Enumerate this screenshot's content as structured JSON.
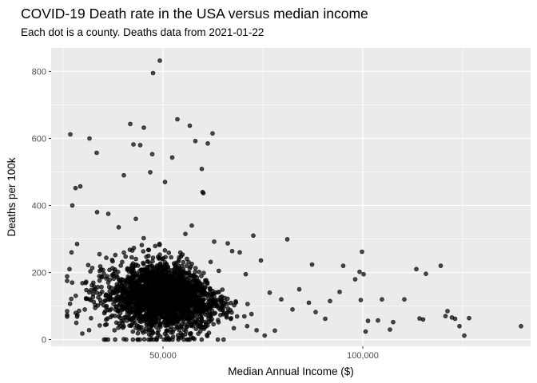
{
  "chart_data": {
    "type": "scatter",
    "title": "COVID-19 Death rate in the USA versus median income",
    "subtitle": "Each dot is a county. Deaths data from 2021-01-22",
    "xlabel": "Median Annual Income ($)",
    "ylabel": "Deaths per 100k",
    "xlim": [
      22000,
      142000
    ],
    "ylim": [
      -20,
      870
    ],
    "x_ticks": [
      50000,
      100000
    ],
    "x_tick_labels": [
      "50,000",
      "100,000"
    ],
    "y_ticks": [
      0,
      200,
      400,
      600,
      800
    ],
    "y_tick_labels": [
      "0",
      "200",
      "400",
      "600",
      "800"
    ],
    "grid": true,
    "background": "#ebebeb",
    "point_color": "#000000",
    "point_fill_opacity": 0.7,
    "cluster": {
      "n_points": 2200,
      "x_median": 50000,
      "x_spread": 9000,
      "y_median": 130,
      "y_spread": 75,
      "x_range": [
        26000,
        78000
      ],
      "y_range": [
        0,
        460
      ]
    },
    "points": [
      {
        "x": 49200,
        "y": 832
      },
      {
        "x": 47500,
        "y": 795
      },
      {
        "x": 45200,
        "y": 632
      },
      {
        "x": 41800,
        "y": 643
      },
      {
        "x": 26800,
        "y": 612
      },
      {
        "x": 31600,
        "y": 600
      },
      {
        "x": 53600,
        "y": 657
      },
      {
        "x": 56700,
        "y": 638
      },
      {
        "x": 62400,
        "y": 615
      },
      {
        "x": 58100,
        "y": 592
      },
      {
        "x": 61200,
        "y": 585
      },
      {
        "x": 42600,
        "y": 582
      },
      {
        "x": 44300,
        "y": 580
      },
      {
        "x": 33400,
        "y": 557
      },
      {
        "x": 52300,
        "y": 543
      },
      {
        "x": 47300,
        "y": 553
      },
      {
        "x": 59700,
        "y": 509
      },
      {
        "x": 59900,
        "y": 440
      },
      {
        "x": 60100,
        "y": 437
      },
      {
        "x": 28100,
        "y": 452
      },
      {
        "x": 29300,
        "y": 457
      },
      {
        "x": 27300,
        "y": 400
      },
      {
        "x": 81100,
        "y": 299
      },
      {
        "x": 72600,
        "y": 310
      },
      {
        "x": 99800,
        "y": 262
      },
      {
        "x": 87300,
        "y": 224
      },
      {
        "x": 95100,
        "y": 220
      },
      {
        "x": 119500,
        "y": 220
      },
      {
        "x": 113400,
        "y": 210
      },
      {
        "x": 99200,
        "y": 202
      },
      {
        "x": 100200,
        "y": 195
      },
      {
        "x": 115800,
        "y": 196
      },
      {
        "x": 98100,
        "y": 180
      },
      {
        "x": 84100,
        "y": 150
      },
      {
        "x": 94200,
        "y": 142
      },
      {
        "x": 104800,
        "y": 120
      },
      {
        "x": 110400,
        "y": 120
      },
      {
        "x": 99500,
        "y": 118
      },
      {
        "x": 91800,
        "y": 115
      },
      {
        "x": 86500,
        "y": 110
      },
      {
        "x": 121200,
        "y": 85
      },
      {
        "x": 120700,
        "y": 70
      },
      {
        "x": 122300,
        "y": 66
      },
      {
        "x": 123100,
        "y": 62
      },
      {
        "x": 126600,
        "y": 64
      },
      {
        "x": 114200,
        "y": 63
      },
      {
        "x": 115100,
        "y": 60
      },
      {
        "x": 107600,
        "y": 52
      },
      {
        "x": 103800,
        "y": 57
      },
      {
        "x": 101300,
        "y": 56
      },
      {
        "x": 124200,
        "y": 40
      },
      {
        "x": 125400,
        "y": 12
      },
      {
        "x": 139600,
        "y": 40
      },
      {
        "x": 106800,
        "y": 30
      },
      {
        "x": 100700,
        "y": 24
      },
      {
        "x": 90600,
        "y": 62
      },
      {
        "x": 88200,
        "y": 82
      },
      {
        "x": 82400,
        "y": 90
      },
      {
        "x": 79600,
        "y": 120
      },
      {
        "x": 76700,
        "y": 140
      },
      {
        "x": 70700,
        "y": 195
      },
      {
        "x": 74500,
        "y": 236
      },
      {
        "x": 69200,
        "y": 260
      },
      {
        "x": 66200,
        "y": 287
      },
      {
        "x": 62800,
        "y": 292
      },
      {
        "x": 67300,
        "y": 264
      },
      {
        "x": 57200,
        "y": 340
      },
      {
        "x": 55600,
        "y": 315
      },
      {
        "x": 38900,
        "y": 335
      },
      {
        "x": 43200,
        "y": 360
      },
      {
        "x": 36300,
        "y": 375
      },
      {
        "x": 33500,
        "y": 380
      },
      {
        "x": 28500,
        "y": 285
      },
      {
        "x": 27100,
        "y": 260
      },
      {
        "x": 26600,
        "y": 210
      },
      {
        "x": 28300,
        "y": 50
      },
      {
        "x": 29800,
        "y": 18
      },
      {
        "x": 46800,
        "y": 499
      },
      {
        "x": 50500,
        "y": 470
      },
      {
        "x": 40200,
        "y": 490
      }
    ]
  }
}
